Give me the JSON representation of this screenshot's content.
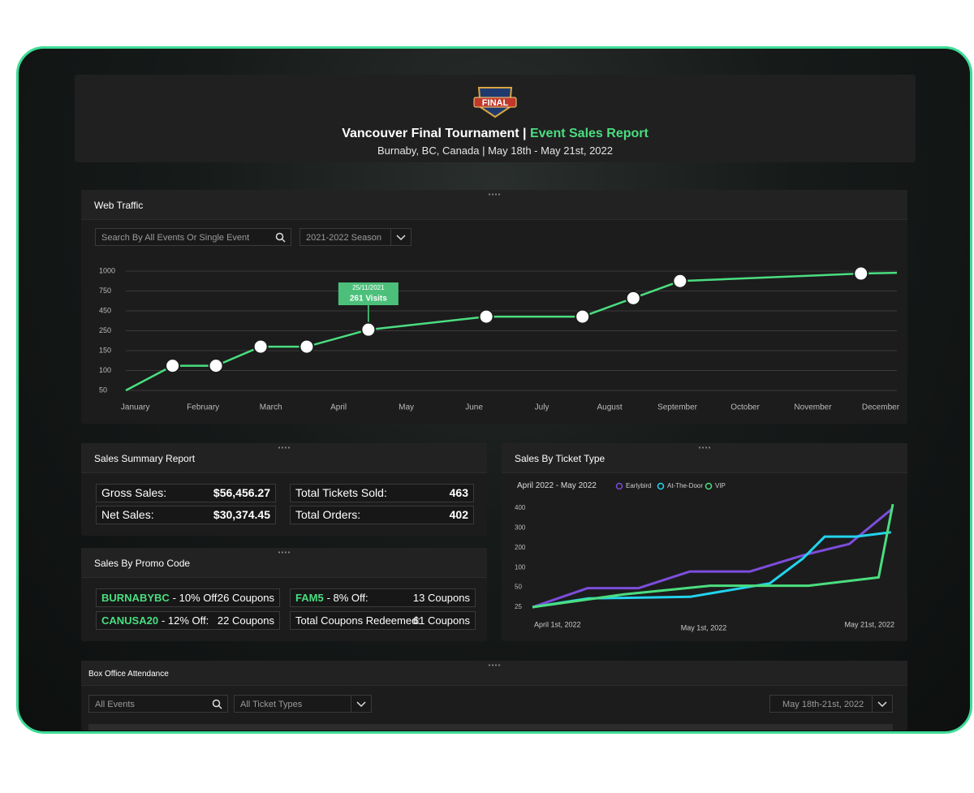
{
  "header": {
    "logo_text": "FINAL",
    "title": "Vancouver Final Tournament |",
    "title_highlight": "Event Sales Report",
    "subtitle": "Burnaby, BC, Canada | May 18th - May 21st, 2022"
  },
  "web_traffic": {
    "title": "Web Traffic",
    "search_placeholder": "Search By All Events Or Single Event",
    "season": "2021-2022 Season",
    "chart": {
      "type": "line",
      "color": "#4ade80",
      "x": [
        0.86,
        1.55,
        2.19,
        2.85,
        3.53,
        4.44,
        6.18,
        7.6,
        8.35,
        9.04,
        11.71,
        12.24
      ],
      "values": [
        50,
        112,
        112,
        170,
        170,
        261,
        392,
        392,
        642,
        875,
        969,
        979
      ],
      "xlim": [
        0.86,
        12.24
      ],
      "xticks": [
        {
          "value": 1,
          "label": "January"
        },
        {
          "value": 2,
          "label": "February"
        },
        {
          "value": 3,
          "label": "March"
        },
        {
          "value": 4,
          "label": "April"
        },
        {
          "value": 5,
          "label": "May"
        },
        {
          "value": 6,
          "label": "June"
        },
        {
          "value": 7,
          "label": "July"
        },
        {
          "value": 8,
          "label": "August"
        },
        {
          "value": 9,
          "label": "September"
        },
        {
          "value": 10,
          "label": "October"
        },
        {
          "value": 11,
          "label": "November"
        },
        {
          "value": 12,
          "label": "December"
        }
      ],
      "ylim": [
        50,
        1000
      ],
      "yticks": [
        1000,
        750,
        450,
        250,
        150,
        100,
        50
      ],
      "grid": true,
      "tooltip": {
        "date": "25/11/2021",
        "label": "261 Visits"
      }
    }
  },
  "sales_summary": {
    "title": "Sales Summary Report",
    "rows": [
      {
        "label": "Gross Sales:",
        "value": "$56,456.27"
      },
      {
        "label": "Net Sales:",
        "value": "$30,374.45"
      },
      {
        "label": "Total Tickets Sold:",
        "value": "463"
      },
      {
        "label": "Total Orders:",
        "value": "402"
      }
    ]
  },
  "promo": {
    "title": "Sales By Promo Code",
    "codes": [
      {
        "code": "BURNABYBC",
        "discount": "- 10% Off:",
        "coupons": "26 Coupons"
      },
      {
        "code": "CANUSA20",
        "discount": "- 12% Off:",
        "coupons": "22 Coupons"
      },
      {
        "code": "FAM5",
        "discount": "- 8% Off:",
        "coupons": "13 Coupons"
      }
    ],
    "total": {
      "label": "Total Coupons Redeemed:",
      "coupons": "61 Coupons"
    }
  },
  "ticket_type": {
    "title": "Sales By Ticket Type",
    "period": "April 2022 - May 2022",
    "chart": {
      "type": "line",
      "xlim": [
        0,
        50
      ],
      "xticks": [
        {
          "value": 0,
          "label": "April 1st, 2022"
        },
        {
          "value": 30,
          "label": "May 1st, 2022"
        },
        {
          "value": 50,
          "label": "May 21st, 2022"
        }
      ],
      "ylim": [
        25,
        420
      ],
      "yticks": [
        400,
        300,
        200,
        100,
        50,
        25
      ],
      "series": [
        {
          "name": "Earlybird",
          "color": "#7c4ddb",
          "x": [
            0,
            9.7,
            18.6,
            27.6,
            34.9,
            40.6,
            45.4,
            49.8
          ],
          "values": [
            25,
            49,
            49,
            90,
            90,
            163,
            219,
            392
          ]
        },
        {
          "name": "At-The-Door",
          "color": "#22d3ee",
          "x": [
            0,
            9.7,
            27.6,
            37.0,
            40.5,
            42.8,
            46.1,
            49.8
          ],
          "values": [
            25,
            36,
            38,
            60,
            146,
            256,
            256,
            278
          ]
        },
        {
          "name": "VIP",
          "color": "#4ade80",
          "x": [
            0,
            15.9,
            30.7,
            41.1,
            48.5,
            50
          ],
          "values": [
            25,
            41,
            54,
            54,
            75,
            420
          ]
        }
      ]
    }
  },
  "box_office": {
    "title": "Box Office Attendance",
    "events": "All Events",
    "ticket_types": "All Ticket Types",
    "dates": "May 18th-21st, 2022"
  }
}
